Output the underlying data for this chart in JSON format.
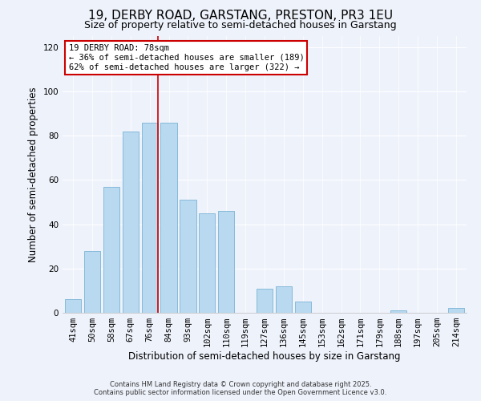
{
  "title": "19, DERBY ROAD, GARSTANG, PRESTON, PR3 1EU",
  "subtitle": "Size of property relative to semi-detached houses in Garstang",
  "xlabel": "Distribution of semi-detached houses by size in Garstang",
  "ylabel": "Number of semi-detached properties",
  "categories": [
    "41sqm",
    "50sqm",
    "58sqm",
    "67sqm",
    "76sqm",
    "84sqm",
    "93sqm",
    "102sqm",
    "110sqm",
    "119sqm",
    "127sqm",
    "136sqm",
    "145sqm",
    "153sqm",
    "162sqm",
    "171sqm",
    "179sqm",
    "188sqm",
    "197sqm",
    "205sqm",
    "214sqm"
  ],
  "values": [
    6,
    28,
    57,
    82,
    86,
    86,
    51,
    45,
    46,
    0,
    11,
    12,
    5,
    0,
    0,
    0,
    0,
    1,
    0,
    0,
    2
  ],
  "bar_color": "#b8d9f0",
  "bar_edge_color": "#7ab3d4",
  "vline_bar_index": 4,
  "vline_color": "#cc0000",
  "annotation_title": "19 DERBY ROAD: 78sqm",
  "annotation_line1": "← 36% of semi-detached houses are smaller (189)",
  "annotation_line2": "62% of semi-detached houses are larger (322) →",
  "annotation_box_facecolor": "#ffffff",
  "annotation_box_edgecolor": "#cc0000",
  "ylim": [
    0,
    125
  ],
  "yticks": [
    0,
    20,
    40,
    60,
    80,
    100,
    120
  ],
  "footer1": "Contains HM Land Registry data © Crown copyright and database right 2025.",
  "footer2": "Contains public sector information licensed under the Open Government Licence v3.0.",
  "background_color": "#eef2fb",
  "grid_color": "#ffffff",
  "title_fontsize": 11,
  "subtitle_fontsize": 9,
  "tick_fontsize": 7.5,
  "ylabel_fontsize": 8.5,
  "xlabel_fontsize": 8.5,
  "annotation_fontsize": 7.5,
  "footer_fontsize": 6
}
